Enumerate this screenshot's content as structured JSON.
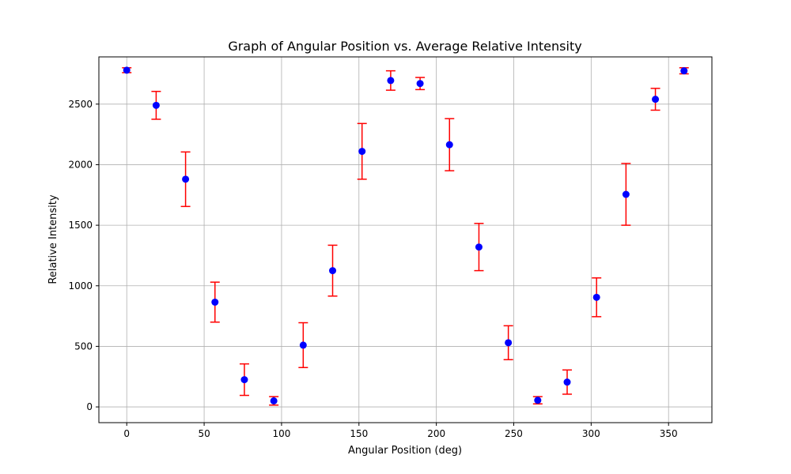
{
  "chart_data": {
    "type": "scatter",
    "title": "Graph of Angular Position vs. Average Relative Intensity",
    "xlabel": "Angular Position (deg)",
    "ylabel": "Relative Intensity",
    "xlim": [
      -18,
      378
    ],
    "ylim": [
      -130,
      2890
    ],
    "xticks": [
      0,
      50,
      100,
      150,
      200,
      250,
      300,
      350
    ],
    "yticks": [
      0,
      500,
      1000,
      1500,
      2000,
      2500
    ],
    "grid": true,
    "marker_color": "#0000ff",
    "error_color": "#ff0000",
    "points": [
      {
        "x": 0,
        "y": 2780,
        "err": 20
      },
      {
        "x": 19,
        "y": 2490,
        "err": 115
      },
      {
        "x": 38,
        "y": 1880,
        "err": 225
      },
      {
        "x": 57,
        "y": 865,
        "err": 165
      },
      {
        "x": 76,
        "y": 225,
        "err": 130
      },
      {
        "x": 95,
        "y": 50,
        "err": 35
      },
      {
        "x": 114,
        "y": 510,
        "err": 185
      },
      {
        "x": 133,
        "y": 1125,
        "err": 210
      },
      {
        "x": 152,
        "y": 2110,
        "err": 230
      },
      {
        "x": 170.5,
        "y": 2695,
        "err": 80
      },
      {
        "x": 189.5,
        "y": 2670,
        "err": 50
      },
      {
        "x": 208.5,
        "y": 2165,
        "err": 215
      },
      {
        "x": 227.5,
        "y": 1320,
        "err": 195
      },
      {
        "x": 246.5,
        "y": 530,
        "err": 140
      },
      {
        "x": 265.5,
        "y": 55,
        "err": 30
      },
      {
        "x": 284.5,
        "y": 205,
        "err": 100
      },
      {
        "x": 303.5,
        "y": 905,
        "err": 160
      },
      {
        "x": 322.5,
        "y": 1755,
        "err": 255
      },
      {
        "x": 341.5,
        "y": 2540,
        "err": 90
      },
      {
        "x": 360,
        "y": 2775,
        "err": 25
      }
    ]
  }
}
